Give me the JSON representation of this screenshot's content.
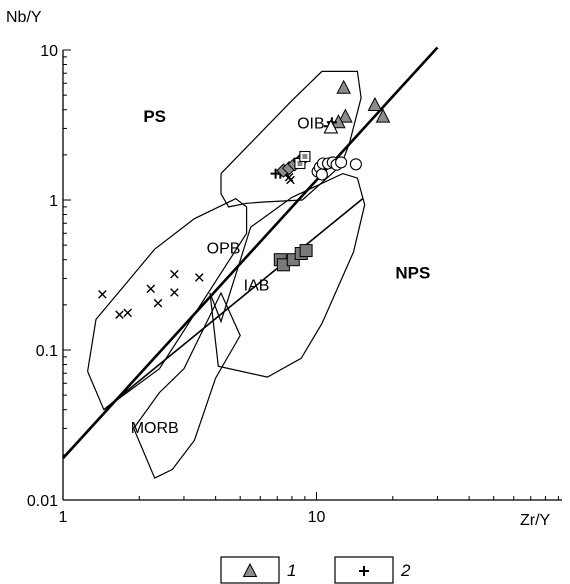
{
  "chart_data": {
    "type": "scatter",
    "title": "",
    "xlabel": "Zr/Y",
    "ylabel": "Nb/Y",
    "x_scale": "log",
    "y_scale": "log",
    "xlim": [
      1,
      100
    ],
    "ylim": [
      0.01,
      10
    ],
    "x_ticks": [
      {
        "value": 1,
        "label": "1"
      },
      {
        "value": 10,
        "label": "10"
      }
    ],
    "y_ticks": [
      {
        "value": 10,
        "label": "10"
      },
      {
        "value": 1,
        "label": "1"
      },
      {
        "value": 0.1,
        "label": "0.1"
      },
      {
        "value": 0.01,
        "label": "0.01"
      }
    ],
    "grid": false,
    "legend_position": "bottom",
    "fields": [
      {
        "label": "PS",
        "bold": true,
        "at": [
          2.3,
          3.3
        ],
        "boundary": []
      },
      {
        "label": "NPS",
        "bold": true,
        "at": [
          24,
          0.3
        ],
        "boundary": []
      },
      {
        "label": "OIB",
        "bold": false,
        "at": [
          9.5,
          3.0
        ],
        "boundary": [
          [
            4.2,
            1.5
          ],
          [
            8,
            4.6
          ],
          [
            10.5,
            7.2
          ],
          [
            14.5,
            7.2
          ],
          [
            15,
            4.8
          ],
          [
            13.5,
            2.4
          ],
          [
            12.5,
            1.7
          ],
          [
            8.8,
            1.0
          ],
          [
            6.2,
            0.97
          ],
          [
            5.3,
            0.95
          ],
          [
            4.5,
            0.9
          ],
          [
            4.2,
            1.1
          ],
          [
            4.2,
            1.5
          ]
        ]
      },
      {
        "label": "OPB",
        "bold": false,
        "at": [
          4.3,
          0.44
        ],
        "boundary": [
          [
            1.25,
            0.072
          ],
          [
            1.45,
            0.04
          ],
          [
            2.4,
            0.075
          ],
          [
            5.3,
            0.6
          ],
          [
            5.3,
            0.9
          ],
          [
            4.8,
            1.02
          ],
          [
            3.3,
            0.75
          ],
          [
            2.3,
            0.47
          ],
          [
            1.35,
            0.16
          ],
          [
            1.25,
            0.072
          ]
        ]
      },
      {
        "label": "IAB",
        "bold": false,
        "at": [
          5.8,
          0.25
        ],
        "boundary": [
          [
            5.5,
            0.66
          ],
          [
            8,
            1.04
          ],
          [
            12.7,
            1.5
          ],
          [
            14.5,
            1.4
          ],
          [
            15.5,
            0.93
          ],
          [
            14,
            0.45
          ],
          [
            10.5,
            0.15
          ],
          [
            8.7,
            0.088
          ],
          [
            6.4,
            0.066
          ],
          [
            4.1,
            0.078
          ],
          [
            3.8,
            0.24
          ],
          [
            4.2,
            0.155
          ],
          [
            5.5,
            0.66
          ]
        ]
      },
      {
        "label": "MORB",
        "bold": false,
        "at": [
          2.3,
          0.028
        ],
        "boundary": [
          [
            1.9,
            0.03
          ],
          [
            2.3,
            0.014
          ],
          [
            2.7,
            0.016
          ],
          [
            3.3,
            0.025
          ],
          [
            4,
            0.065
          ],
          [
            5,
            0.125
          ],
          [
            4.2,
            0.24
          ],
          [
            3.0,
            0.075
          ],
          [
            2.4,
            0.052
          ],
          [
            1.9,
            0.03
          ]
        ]
      }
    ],
    "boundary_lines": [
      {
        "x": [
          1,
          30
        ],
        "y": [
          0.019,
          10.4
        ]
      },
      {
        "x": [
          1.45,
          15.2
        ],
        "y": [
          0.04,
          1.02
        ]
      }
    ],
    "series": [
      {
        "name": "1",
        "marker": "triangle-gray",
        "points": [
          [
            12.8,
            5.6
          ],
          [
            13.0,
            3.6
          ],
          [
            17,
            4.3
          ],
          [
            18.3,
            3.6
          ],
          [
            12.2,
            3.3
          ]
        ]
      },
      {
        "name": "2",
        "marker": "plus",
        "points": [
          [
            6.9,
            1.5
          ],
          [
            7.2,
            1.5
          ],
          [
            7.6,
            1.55
          ],
          [
            11.2,
            3.1
          ],
          [
            11.5,
            3.3
          ]
        ]
      },
      {
        "name": "",
        "marker": "x-cross",
        "points": [
          [
            1.43,
            0.235
          ],
          [
            1.67,
            0.172
          ],
          [
            1.8,
            0.177
          ],
          [
            2.22,
            0.256
          ],
          [
            2.37,
            0.205
          ],
          [
            2.75,
            0.242
          ],
          [
            2.75,
            0.32
          ],
          [
            3.45,
            0.305
          ],
          [
            7.5,
            1.53
          ],
          [
            7.8,
            1.42
          ],
          [
            7.9,
            1.36
          ]
        ]
      },
      {
        "name": "",
        "marker": "square-gray",
        "points": [
          [
            7.2,
            0.4
          ],
          [
            7.4,
            0.37
          ],
          [
            8.1,
            0.4
          ],
          [
            8.7,
            0.44
          ],
          [
            9.1,
            0.46
          ]
        ]
      },
      {
        "name": "",
        "marker": "diamond-gray",
        "points": [
          [
            7.4,
            1.57
          ],
          [
            7.8,
            1.63
          ],
          [
            8.2,
            1.73
          ],
          [
            8.6,
            1.82
          ],
          [
            8.9,
            1.9
          ]
        ]
      },
      {
        "name": "",
        "marker": "square-hollow",
        "points": [
          [
            8.6,
            1.75
          ],
          [
            9.0,
            1.95
          ]
        ]
      },
      {
        "name": "",
        "marker": "circle-open",
        "points": [
          [
            10.1,
            1.55
          ],
          [
            10.3,
            1.65
          ],
          [
            10.6,
            1.75
          ],
          [
            11.1,
            1.75
          ],
          [
            11.6,
            1.78
          ],
          [
            12.0,
            1.72
          ],
          [
            12.5,
            1.78
          ],
          [
            14.3,
            1.73
          ],
          [
            10.5,
            1.48
          ]
        ]
      },
      {
        "name": "",
        "marker": "triangle-open",
        "points": [
          [
            11.4,
            3.05
          ]
        ]
      }
    ],
    "legend": [
      {
        "marker": "triangle-gray",
        "label": "1"
      },
      {
        "marker": "plus",
        "label": "2"
      }
    ]
  }
}
